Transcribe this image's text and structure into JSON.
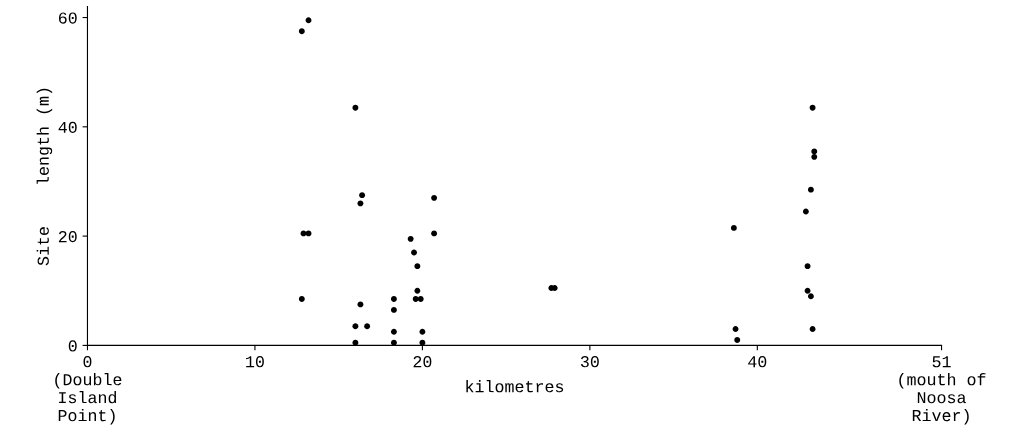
{
  "chart_data": {
    "type": "scatter",
    "xlabel": "kilometres",
    "ylabel": "Site    length (m)",
    "x": [
      12.8,
      13.2,
      16.0,
      16.4,
      16.3,
      12.9,
      13.2,
      12.8,
      20.7,
      20.7,
      19.3,
      19.5,
      19.7,
      19.7,
      19.6,
      19.9,
      16.3,
      16.0,
      16.7,
      16.0,
      18.3,
      18.3,
      18.3,
      18.3,
      20.0,
      20.0,
      27.7,
      27.9,
      43.3,
      43.4,
      43.4,
      43.2,
      42.9,
      38.6,
      43.0,
      43.0,
      43.2,
      43.3,
      38.7,
      38.8
    ],
    "values": [
      57.5,
      59.5,
      43.5,
      27.5,
      26,
      20.5,
      20.5,
      8.5,
      27,
      20.5,
      19.5,
      17,
      14.5,
      10,
      8.5,
      8.5,
      7.5,
      3.5,
      3.5,
      0.5,
      8.5,
      6.5,
      2.5,
      0.5,
      2.5,
      0.5,
      10.5,
      10.5,
      43.5,
      35.5,
      34.5,
      28.5,
      24.5,
      21.5,
      14.5,
      10,
      9,
      3,
      3,
      1
    ],
    "color": "#000000",
    "marker": "circle",
    "xlim": [
      0,
      51
    ],
    "xticks": [
      {
        "value": 0,
        "label": "0\n(Double\nIsland\nPoint)"
      },
      10,
      20,
      30,
      40,
      {
        "value": 51,
        "label": "51\n(mouth of\nNoosa\nRiver)"
      }
    ],
    "ylim": [
      0,
      62
    ],
    "yticks": [
      0,
      20,
      40,
      60
    ],
    "grid": false
  }
}
